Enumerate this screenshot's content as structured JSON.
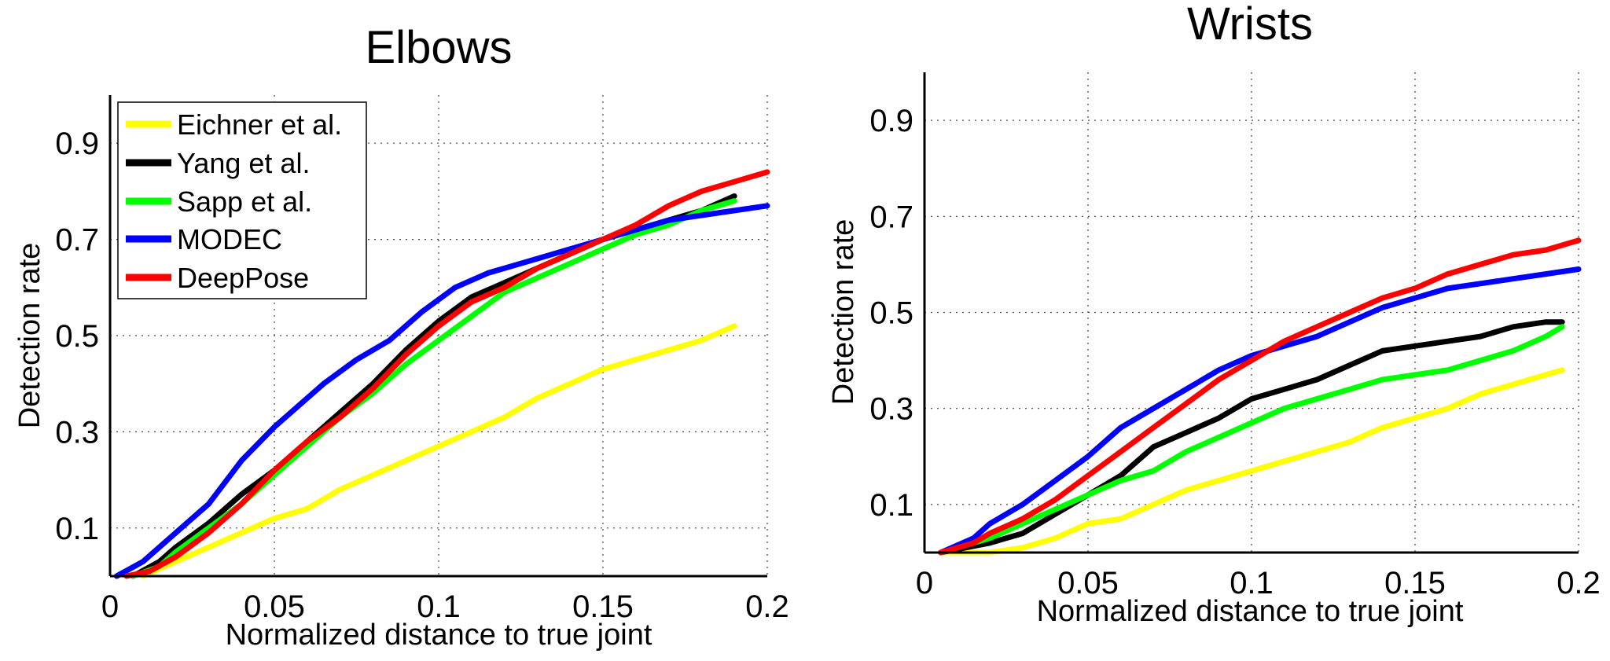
{
  "chart_data": [
    {
      "type": "line",
      "title": "Elbows",
      "xlabel": "Normalized distance to true joint",
      "ylabel": "Detection rate",
      "xlim": [
        0,
        0.2
      ],
      "ylim": [
        0,
        1.0
      ],
      "xticks": [
        "0",
        "0.05",
        "0.1",
        "0.15",
        "0.2"
      ],
      "xtick_values": [
        0,
        0.05,
        0.1,
        0.15,
        0.2
      ],
      "yticks": [
        "0.1",
        "0.3",
        "0.5",
        "0.7",
        "0.9"
      ],
      "ytick_values": [
        0.1,
        0.3,
        0.5,
        0.7,
        0.9
      ],
      "grid": true,
      "legend": "top-left",
      "series": [
        {
          "name": "Eichner et al.",
          "color": "#ffff00",
          "x": [
            0.01,
            0.02,
            0.03,
            0.04,
            0.05,
            0.06,
            0.07,
            0.08,
            0.09,
            0.1,
            0.11,
            0.12,
            0.13,
            0.14,
            0.15,
            0.16,
            0.17,
            0.18,
            0.19
          ],
          "y": [
            0.0,
            0.03,
            0.06,
            0.09,
            0.12,
            0.14,
            0.18,
            0.21,
            0.24,
            0.27,
            0.3,
            0.33,
            0.37,
            0.4,
            0.43,
            0.45,
            0.47,
            0.49,
            0.52
          ]
        },
        {
          "name": "Yang et al.",
          "color": "#000000",
          "x": [
            0.007,
            0.015,
            0.02,
            0.03,
            0.04,
            0.05,
            0.06,
            0.07,
            0.08,
            0.09,
            0.1,
            0.11,
            0.12,
            0.13,
            0.14,
            0.15,
            0.16,
            0.17,
            0.18,
            0.19
          ],
          "y": [
            0.0,
            0.03,
            0.06,
            0.11,
            0.17,
            0.22,
            0.28,
            0.34,
            0.4,
            0.47,
            0.53,
            0.58,
            0.61,
            0.64,
            0.67,
            0.7,
            0.72,
            0.74,
            0.76,
            0.79
          ]
        },
        {
          "name": "Sapp et al.",
          "color": "#00ff00",
          "x": [
            0.007,
            0.015,
            0.02,
            0.03,
            0.04,
            0.05,
            0.06,
            0.07,
            0.08,
            0.09,
            0.1,
            0.11,
            0.12,
            0.13,
            0.14,
            0.15,
            0.16,
            0.17,
            0.18,
            0.19
          ],
          "y": [
            0.0,
            0.02,
            0.05,
            0.1,
            0.15,
            0.21,
            0.27,
            0.33,
            0.38,
            0.44,
            0.49,
            0.54,
            0.59,
            0.62,
            0.65,
            0.68,
            0.71,
            0.73,
            0.76,
            0.78
          ]
        },
        {
          "name": "MODEC",
          "color": "#0000ff",
          "x": [
            0.002,
            0.01,
            0.02,
            0.03,
            0.04,
            0.05,
            0.065,
            0.075,
            0.085,
            0.095,
            0.105,
            0.115,
            0.13,
            0.14,
            0.15,
            0.16,
            0.17,
            0.18,
            0.19,
            0.2
          ],
          "y": [
            0.0,
            0.03,
            0.09,
            0.15,
            0.24,
            0.31,
            0.4,
            0.45,
            0.49,
            0.55,
            0.6,
            0.63,
            0.66,
            0.68,
            0.7,
            0.72,
            0.74,
            0.75,
            0.76,
            0.77
          ]
        },
        {
          "name": "DeepPose",
          "color": "#ff0000",
          "x": [
            0.005,
            0.012,
            0.02,
            0.03,
            0.04,
            0.05,
            0.06,
            0.07,
            0.08,
            0.09,
            0.1,
            0.11,
            0.12,
            0.13,
            0.14,
            0.15,
            0.16,
            0.17,
            0.18,
            0.19,
            0.2
          ],
          "y": [
            0.0,
            0.01,
            0.04,
            0.09,
            0.15,
            0.22,
            0.28,
            0.33,
            0.39,
            0.46,
            0.52,
            0.57,
            0.6,
            0.64,
            0.67,
            0.7,
            0.73,
            0.77,
            0.8,
            0.82,
            0.84
          ]
        }
      ]
    },
    {
      "type": "line",
      "title": "Wrists",
      "xlabel": "Normalized distance to true joint",
      "ylabel": "Detection rate",
      "xlim": [
        0,
        0.2
      ],
      "ylim": [
        0,
        1.0
      ],
      "xticks": [
        "0",
        "0.05",
        "0.1",
        "0.15",
        "0.2"
      ],
      "xtick_values": [
        0,
        0.05,
        0.1,
        0.15,
        0.2
      ],
      "yticks": [
        "0.1",
        "0.3",
        "0.5",
        "0.7",
        "0.9"
      ],
      "ytick_values": [
        0.1,
        0.3,
        0.5,
        0.7,
        0.9
      ],
      "grid": true,
      "legend": "none",
      "series": [
        {
          "name": "Eichner et al.",
          "color": "#ffff00",
          "x": [
            0.005,
            0.02,
            0.03,
            0.04,
            0.05,
            0.06,
            0.07,
            0.08,
            0.09,
            0.1,
            0.11,
            0.12,
            0.13,
            0.14,
            0.15,
            0.16,
            0.17,
            0.18,
            0.19,
            0.195
          ],
          "y": [
            0.0,
            0.0,
            0.01,
            0.03,
            0.06,
            0.07,
            0.1,
            0.13,
            0.15,
            0.17,
            0.19,
            0.21,
            0.23,
            0.26,
            0.28,
            0.3,
            0.33,
            0.35,
            0.37,
            0.38
          ]
        },
        {
          "name": "Yang et al.",
          "color": "#000000",
          "x": [
            0.005,
            0.02,
            0.03,
            0.04,
            0.05,
            0.06,
            0.07,
            0.08,
            0.09,
            0.1,
            0.11,
            0.12,
            0.13,
            0.14,
            0.15,
            0.16,
            0.17,
            0.18,
            0.19,
            0.195
          ],
          "y": [
            0.0,
            0.02,
            0.04,
            0.08,
            0.12,
            0.16,
            0.22,
            0.25,
            0.28,
            0.32,
            0.34,
            0.36,
            0.39,
            0.42,
            0.43,
            0.44,
            0.45,
            0.47,
            0.48,
            0.48
          ]
        },
        {
          "name": "Sapp et al.",
          "color": "#00ff00",
          "x": [
            0.005,
            0.02,
            0.03,
            0.04,
            0.05,
            0.06,
            0.07,
            0.08,
            0.09,
            0.1,
            0.11,
            0.12,
            0.13,
            0.14,
            0.15,
            0.16,
            0.17,
            0.18,
            0.19,
            0.195
          ],
          "y": [
            0.0,
            0.03,
            0.06,
            0.09,
            0.12,
            0.15,
            0.17,
            0.21,
            0.24,
            0.27,
            0.3,
            0.32,
            0.34,
            0.36,
            0.37,
            0.38,
            0.4,
            0.42,
            0.45,
            0.47
          ]
        },
        {
          "name": "MODEC",
          "color": "#0000ff",
          "x": [
            0.005,
            0.015,
            0.02,
            0.03,
            0.04,
            0.05,
            0.06,
            0.07,
            0.08,
            0.09,
            0.1,
            0.11,
            0.12,
            0.13,
            0.14,
            0.15,
            0.16,
            0.17,
            0.18,
            0.19,
            0.2
          ],
          "y": [
            0.0,
            0.03,
            0.06,
            0.1,
            0.15,
            0.2,
            0.26,
            0.3,
            0.34,
            0.38,
            0.41,
            0.43,
            0.45,
            0.48,
            0.51,
            0.53,
            0.55,
            0.56,
            0.57,
            0.58,
            0.59
          ]
        },
        {
          "name": "DeepPose",
          "color": "#ff0000",
          "x": [
            0.005,
            0.015,
            0.02,
            0.03,
            0.04,
            0.05,
            0.06,
            0.07,
            0.08,
            0.09,
            0.1,
            0.11,
            0.12,
            0.13,
            0.14,
            0.15,
            0.16,
            0.17,
            0.18,
            0.19,
            0.2
          ],
          "y": [
            0.0,
            0.02,
            0.04,
            0.07,
            0.11,
            0.16,
            0.21,
            0.26,
            0.31,
            0.36,
            0.4,
            0.44,
            0.47,
            0.5,
            0.53,
            0.55,
            0.58,
            0.6,
            0.62,
            0.63,
            0.65
          ]
        }
      ]
    }
  ]
}
